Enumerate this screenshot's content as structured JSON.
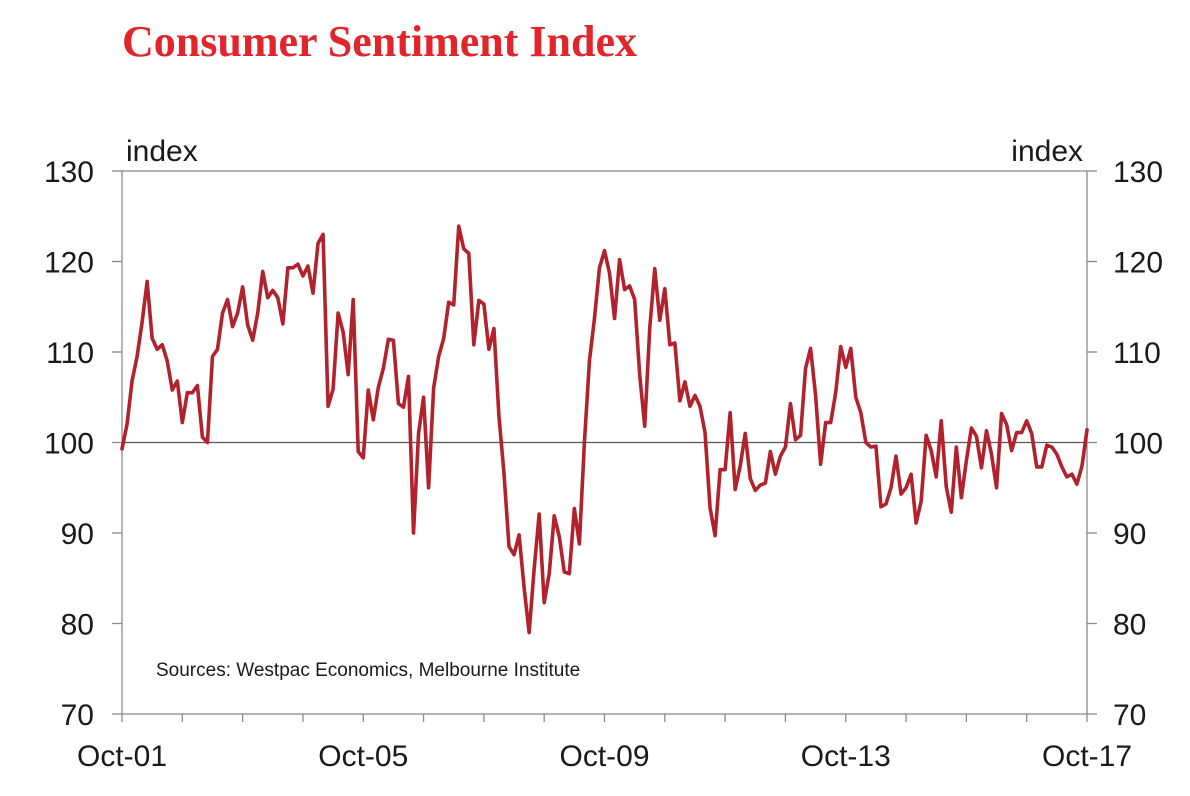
{
  "chart_data": {
    "type": "line",
    "title": "Consumer Sentiment Index",
    "ylabel_left": "index",
    "ylabel_right": "index",
    "ylim": [
      70,
      130
    ],
    "yticks": [
      70,
      80,
      90,
      100,
      110,
      120,
      130
    ],
    "reference_line": 100,
    "x_start": "Oct-01",
    "x_months": 192,
    "xtick_labels": [
      {
        "month": 0,
        "label": "Oct-01"
      },
      {
        "month": 48,
        "label": "Oct-05"
      },
      {
        "month": 96,
        "label": "Oct-09"
      },
      {
        "month": 144,
        "label": "Oct-13"
      },
      {
        "month": 192,
        "label": "Oct-17"
      }
    ],
    "annotation": "Sources: Westpac Economics, Melbourne Institute",
    "series": [
      {
        "name": "Consumer Sentiment Index",
        "color": "#b2222c",
        "values": [
          99.3,
          102,
          106.8,
          109.5,
          113.3,
          117.8,
          111.5,
          110.3,
          110.8,
          109,
          105.8,
          106.8,
          102.2,
          105.5,
          105.5,
          106.3,
          100.6,
          100,
          109.5,
          110.3,
          114.3,
          115.8,
          112.8,
          114.3,
          117.2,
          113,
          111.3,
          114.3,
          118.9,
          116,
          116.8,
          116,
          113.1,
          119.3,
          119.3,
          119.7,
          118.4,
          119.5,
          116.5,
          122,
          123,
          104,
          105.9,
          114.3,
          112.2,
          107.5,
          115.8,
          99,
          98.3,
          105.8,
          102.5,
          106.1,
          108.2,
          111.4,
          111.3,
          104.3,
          103.9,
          107.3,
          90,
          101,
          105,
          95,
          106,
          109.5,
          111.5,
          115.5,
          115.2,
          123.9,
          121.4,
          120.9,
          110.8,
          115.7,
          115.3,
          110.3,
          112.6,
          102.9,
          96.6,
          88.5,
          87.6,
          89.8,
          84,
          79,
          86,
          92.1,
          82.3,
          85.5,
          91.9,
          89.6,
          85.7,
          85.5,
          92.7,
          88.8,
          100,
          109,
          113.7,
          119.3,
          121.2,
          118.7,
          113.7,
          120.2,
          116.9,
          117.3,
          115.8,
          107.5,
          101.8,
          112.6,
          119.2,
          113.5,
          117,
          110.8,
          111,
          104.6,
          106.7,
          104,
          105.2,
          104,
          101.1,
          92.8,
          89.7,
          97,
          97,
          103.3,
          94.8,
          97.4,
          101,
          96,
          94.7,
          95.3,
          95.5,
          99,
          96.5,
          98.5,
          99.5,
          104.3,
          100.3,
          100.8,
          108.2,
          110.4,
          105.2,
          97.6,
          102.2,
          102.2,
          105.5,
          110.6,
          108.3,
          110.4,
          105,
          103.3,
          100,
          99.5,
          99.6,
          92.9,
          93.2,
          95,
          98.5,
          94.3,
          95,
          96.5,
          91.1,
          93.5,
          100.8,
          99.1,
          96.2,
          102.4,
          95.1,
          92.3,
          99.5,
          93.9,
          98,
          101.6,
          100.7,
          97.2,
          101.3,
          98.7,
          95,
          103.2,
          102,
          99.1,
          101.1,
          101.1,
          102.4,
          101,
          97.3,
          97.3,
          99.7,
          99.5,
          98.7,
          97.3,
          96.2,
          96.5,
          95.4,
          97.4,
          101.4
        ]
      }
    ]
  }
}
